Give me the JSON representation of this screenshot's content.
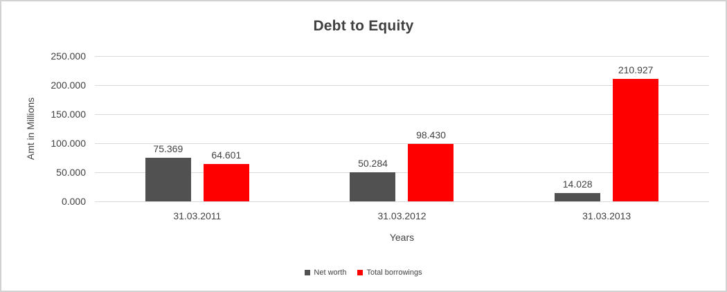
{
  "chart_data": {
    "type": "bar",
    "title": "Debt to Equity",
    "xlabel": "Years",
    "ylabel": "Amt in Millions",
    "ylim": [
      0,
      250
    ],
    "grid": true,
    "legend_position": "bottom",
    "categories": [
      "31.03.2011",
      "31.03.2012",
      "31.03.2013"
    ],
    "y_ticks": [
      {
        "value": 0,
        "label": "0.000"
      },
      {
        "value": 50,
        "label": "50.000"
      },
      {
        "value": 100,
        "label": "100.000"
      },
      {
        "value": 150,
        "label": "150.000"
      },
      {
        "value": 200,
        "label": "200.000"
      },
      {
        "value": 250,
        "label": "250.000"
      }
    ],
    "series": [
      {
        "name": "Net worth",
        "color": "#515151",
        "values": [
          75.369,
          50.284,
          14.028
        ],
        "labels": [
          "75.369",
          "50.284",
          "14.028"
        ]
      },
      {
        "name": "Total borrowings",
        "color": "#ff0000",
        "values": [
          64.601,
          98.43,
          210.927
        ],
        "labels": [
          "64.601",
          "98.430",
          "210.927"
        ]
      }
    ]
  },
  "colors": {
    "bar_net_worth": "#515151",
    "bar_total_borrowings": "#ff0000",
    "gridline": "#d9d9d9",
    "text": "#404040",
    "frame_border": "#d2d2d2",
    "background": "#ffffff"
  }
}
